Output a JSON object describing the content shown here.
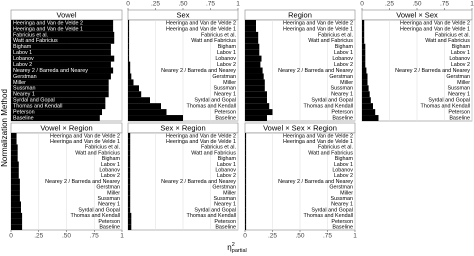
{
  "axes": {
    "y_label": "Normalization Method",
    "x_symbol": "η",
    "x_sup": "2",
    "x_sub": "partial"
  },
  "chart_data": [
    {
      "type": "bar",
      "title": "Vowel",
      "categories": [
        "Heeringa and Van de Velde 2",
        "Heeringa and Van de Velde 1",
        "Fabricius et al.",
        "Watt and Fabricius",
        "Bigham",
        "Labov 1",
        "Lobanov",
        "Labov 2",
        "Nearey 2 / Barreda and Nearey",
        "Gerstman",
        "Miller",
        "Sussman",
        "Nearey 1",
        "Syrdal and Gopal",
        "Thomas and Kendall",
        "Peterson",
        "Baseline"
      ],
      "values": [
        0.92,
        0.92,
        0.93,
        0.93,
        0.9,
        0.9,
        0.93,
        0.9,
        0.92,
        0.9,
        0.88,
        0.88,
        0.88,
        0.85,
        0.85,
        0.82,
        0.8
      ],
      "color": "#000000",
      "xlim": [
        0,
        1
      ],
      "xticks": [
        0,
        {
          "value": 0.25,
          "label": ".25"
        },
        {
          "value": 0.5,
          "label": ".50"
        },
        {
          "value": 0.75,
          "label": ".75"
        },
        1
      ]
    },
    {
      "type": "bar",
      "title": "Sex",
      "categories": [
        "Heeringa and Van de Velde 2",
        "Heeringa and Van de Velde 1",
        "Fabricius et al.",
        "Watt and Fabricius",
        "Bigham",
        "Labov 1",
        "Lobanov",
        "Labov 2",
        "Nearey 2 / Barreda and Nearey",
        "Gerstman",
        "Miller",
        "Sussman",
        "Nearey 1",
        "Syrdal and Gopal",
        "Thomas and Kendall",
        "Peterson",
        "Baseline"
      ],
      "values": [
        0.01,
        0.01,
        0.01,
        0.01,
        0.01,
        0.01,
        0.01,
        0.02,
        0.02,
        0.03,
        0.05,
        0.1,
        0.12,
        0.2,
        0.3,
        0.35,
        0.5
      ],
      "color": "#000000",
      "xlim": [
        0,
        1
      ],
      "xticks": [
        0,
        {
          "value": 0.25,
          "label": ".25"
        },
        {
          "value": 0.5,
          "label": ".50"
        },
        {
          "value": 0.75,
          "label": ".75"
        },
        1
      ]
    },
    {
      "type": "bar",
      "title": "Region",
      "categories": [
        "Heeringa and Van de Velde 2",
        "Heeringa and Van de Velde 1",
        "Fabricius et al.",
        "Watt and Fabricius",
        "Bigham",
        "Labov 1",
        "Lobanov",
        "Labov 2",
        "Nearey 2 / Barreda and Nearey",
        "Gerstman",
        "Miller",
        "Sussman",
        "Nearey 1",
        "Syrdal and Gopal",
        "Thomas and Kendall",
        "Peterson",
        "Baseline"
      ],
      "values": [
        0.1,
        0.1,
        0.12,
        0.12,
        0.13,
        0.13,
        0.15,
        0.14,
        0.16,
        0.17,
        0.18,
        0.18,
        0.2,
        0.2,
        0.22,
        0.25,
        0.2
      ],
      "color": "#000000",
      "xlim": [
        0,
        1
      ],
      "xticks": [
        0,
        {
          "value": 0.25,
          "label": ".25"
        },
        {
          "value": 0.5,
          "label": ".50"
        },
        {
          "value": 0.75,
          "label": ".75"
        },
        1
      ]
    },
    {
      "type": "bar",
      "title": "Vowel × Sex",
      "categories": [
        "Heeringa and Van de Velde 2",
        "Heeringa and Van de Velde 1",
        "Fabricius et al.",
        "Watt and Fabricius",
        "Bigham",
        "Labov 1",
        "Lobanov",
        "Labov 2",
        "Nearey 2 / Barreda and Nearey",
        "Gerstman",
        "Miller",
        "Sussman",
        "Nearey 1",
        "Syrdal and Gopal",
        "Thomas and Kendall",
        "Peterson",
        "Baseline"
      ],
      "values": [
        0.02,
        0.02,
        0.02,
        0.02,
        0.03,
        0.03,
        0.03,
        0.03,
        0.04,
        0.05,
        0.05,
        0.06,
        0.07,
        0.08,
        0.1,
        0.12,
        0.15
      ],
      "color": "#000000",
      "xlim": [
        0,
        1
      ],
      "xticks": [
        0,
        {
          "value": 0.25,
          "label": ".25"
        },
        {
          "value": 0.5,
          "label": ".50"
        },
        {
          "value": 0.75,
          "label": ".75"
        },
        1
      ]
    },
    {
      "type": "bar",
      "title": "Vowel × Region",
      "categories": [
        "Heeringa and Van de Velde 2",
        "Heeringa and Van de Velde 1",
        "Fabricius et al.",
        "Watt and Fabricius",
        "Bigham",
        "Labov 1",
        "Lobanov",
        "Labov 2",
        "Nearey 2 / Barreda and Nearey",
        "Gerstman",
        "Miller",
        "Sussman",
        "Nearey 1",
        "Syrdal and Gopal",
        "Thomas and Kendall",
        "Peterson",
        "Baseline"
      ],
      "values": [
        0.05,
        0.05,
        0.06,
        0.06,
        0.06,
        0.07,
        0.07,
        0.07,
        0.08,
        0.08,
        0.08,
        0.08,
        0.09,
        0.09,
        0.1,
        0.1,
        0.1
      ],
      "color": "#000000",
      "xlim": [
        0,
        1
      ],
      "xticks": [
        0,
        {
          "value": 0.25,
          "label": ".25"
        },
        {
          "value": 0.5,
          "label": ".50"
        },
        {
          "value": 0.75,
          "label": ".75"
        },
        1
      ]
    },
    {
      "type": "bar",
      "title": "Sex × Region",
      "categories": [
        "Heeringa and Van de Velde 2",
        "Heeringa and Van de Velde 1",
        "Fabricius et al.",
        "Watt and Fabricius",
        "Bigham",
        "Labov 1",
        "Lobanov",
        "Labov 2",
        "Nearey 2 / Barreda and Nearey",
        "Gerstman",
        "Miller",
        "Sussman",
        "Nearey 1",
        "Syrdal and Gopal",
        "Thomas and Kendall",
        "Peterson",
        "Baseline"
      ],
      "values": [
        0.02,
        0.02,
        0.02,
        0.02,
        0.02,
        0.02,
        0.02,
        0.02,
        0.02,
        0.02,
        0.02,
        0.02,
        0.02,
        0.02,
        0.03,
        0.03,
        0.03
      ],
      "color": "#000000",
      "xlim": [
        0,
        1
      ],
      "xticks": [
        0,
        {
          "value": 0.25,
          "label": ".25"
        },
        {
          "value": 0.5,
          "label": ".50"
        },
        {
          "value": 0.75,
          "label": ".75"
        },
        1
      ]
    },
    {
      "type": "bar",
      "title": "Vowel × Sex × Region",
      "categories": [
        "Heeringa and Van de Velde 2",
        "Heeringa and Van de Velde 1",
        "Fabricius et al.",
        "Watt and Fabricius",
        "Bigham",
        "Labov 1",
        "Lobanov",
        "Labov 2",
        "Nearey 2 / Barreda and Nearey",
        "Gerstman",
        "Miller",
        "Sussman",
        "Nearey 1",
        "Syrdal and Gopal",
        "Thomas and Kendall",
        "Peterson",
        "Baseline"
      ],
      "values": [
        0.01,
        0.01,
        0.01,
        0.01,
        0.01,
        0.01,
        0.01,
        0.01,
        0.01,
        0.01,
        0.01,
        0.01,
        0.01,
        0.01,
        0.01,
        0.01,
        0.01
      ],
      "color": "#000000",
      "xlim": [
        0,
        1
      ],
      "xticks": [
        0,
        {
          "value": 0.25,
          "label": ".25"
        },
        {
          "value": 0.5,
          "label": ".50"
        },
        {
          "value": 0.75,
          "label": ".75"
        },
        1
      ]
    }
  ]
}
